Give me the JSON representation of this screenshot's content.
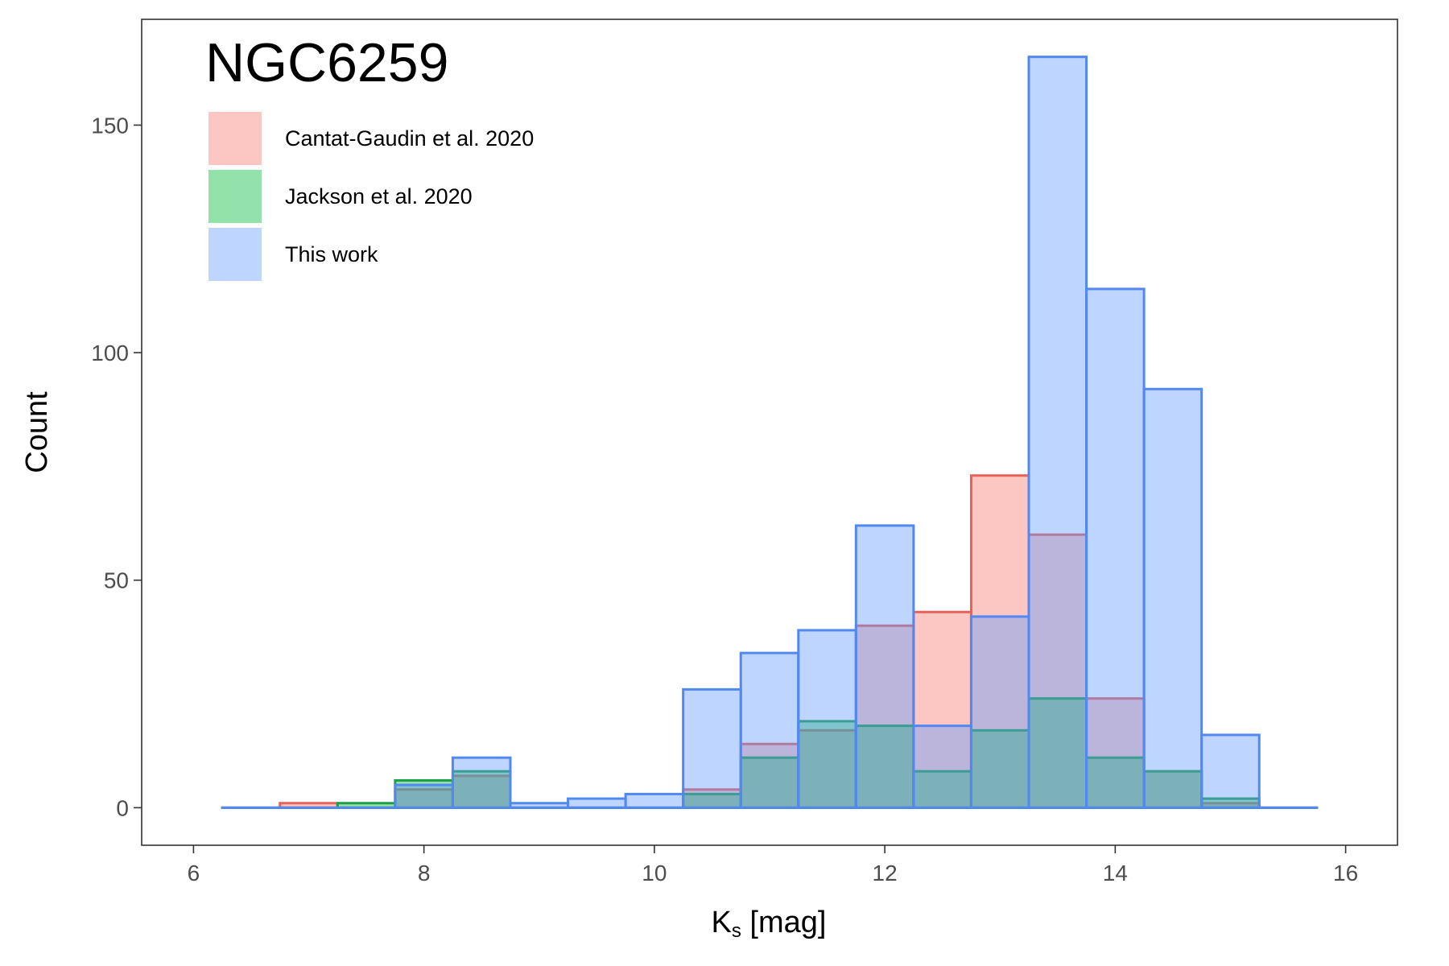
{
  "chart_data": {
    "type": "bar",
    "title": "NGC6259",
    "xlabel": {
      "main": "K",
      "sub": "s",
      "unit": " [mag]"
    },
    "ylabel": "Count",
    "xlim": [
      5.55,
      16.45
    ],
    "ylim": [
      -8.25,
      173.25
    ],
    "xticks": [
      6,
      8,
      10,
      12,
      14,
      16
    ],
    "yticks": [
      0,
      50,
      100,
      150
    ],
    "bin_width": 0.5,
    "grid": false,
    "legend_position": "top-left",
    "bins": [
      6.5,
      7.0,
      7.5,
      8.0,
      8.5,
      9.0,
      9.5,
      10.0,
      10.5,
      11.0,
      11.5,
      12.0,
      12.5,
      13.0,
      13.5,
      14.0,
      14.5,
      15.0,
      15.5
    ],
    "series": [
      {
        "name": "Cantat-Gaudin et al. 2020",
        "fill": "#F8766D",
        "stroke": "#E8625A",
        "values": [
          0,
          1,
          0,
          4,
          7,
          0,
          0,
          0,
          4,
          14,
          17,
          40,
          43,
          73,
          60,
          24,
          8,
          1,
          0
        ]
      },
      {
        "name": "Jackson et al. 2020",
        "fill": "#00BA38",
        "stroke": "#1E9E45",
        "values": [
          0,
          0,
          1,
          6,
          8,
          0,
          0,
          0,
          3,
          11,
          19,
          18,
          8,
          17,
          24,
          11,
          8,
          2,
          0
        ]
      },
      {
        "name": "This work",
        "fill": "#619CFF",
        "stroke": "#5288F2",
        "values": [
          0,
          0,
          0,
          5,
          11,
          1,
          2,
          3,
          26,
          34,
          39,
          62,
          18,
          42,
          165,
          114,
          92,
          16,
          0
        ]
      }
    ]
  }
}
